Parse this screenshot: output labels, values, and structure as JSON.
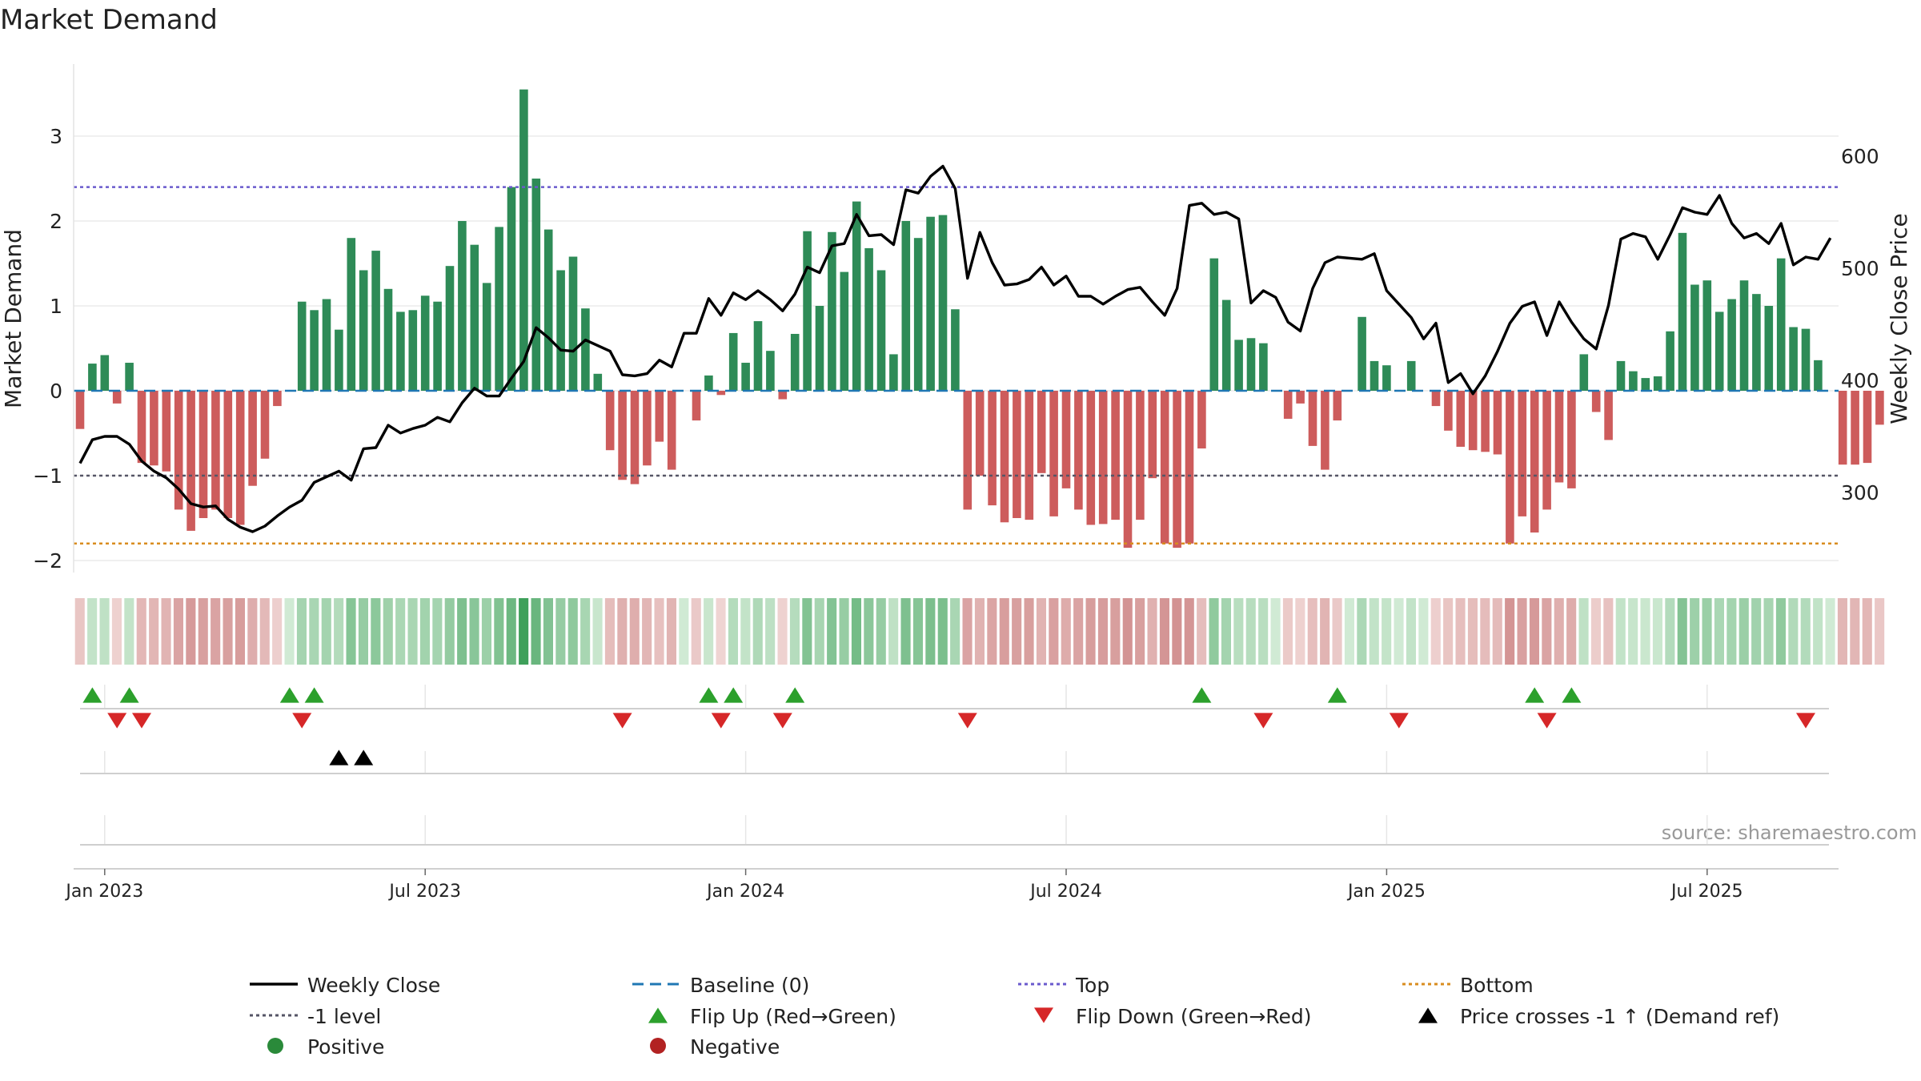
{
  "chart_data": {
    "type": "bar",
    "title": "Market Demand",
    "ylabel": "Market Demand",
    "y2label": "Weekly Close Price",
    "source": "source: sharemaestro.com",
    "ylim": [
      -2.2,
      3.75
    ],
    "y2lim": [
      236,
      700
    ],
    "yticks": [
      3,
      2,
      1,
      0,
      -1,
      -2
    ],
    "yticklabels": [
      "3",
      "2",
      "1",
      "0",
      "−1",
      "−2"
    ],
    "y2ticks": [
      600,
      500,
      400,
      300
    ],
    "y2ticklabels": [
      "600",
      "500",
      "400",
      "300"
    ],
    "xticks": [
      {
        "label": "Jan 2023",
        "week": 2
      },
      {
        "label": "Jul 2023",
        "week": 28
      },
      {
        "label": "Jan 2024",
        "week": 54
      },
      {
        "label": "Jul 2024",
        "week": 80
      },
      {
        "label": "Jan 2025",
        "week": 106
      },
      {
        "label": "Jul 2025",
        "week": 132
      }
    ],
    "levels": {
      "top": 2.4,
      "minus1": -1,
      "bottom": -1.8,
      "baseline": 0
    },
    "demand": [
      -0.45,
      0.32,
      0.42,
      -0.15,
      0.33,
      -0.85,
      -0.88,
      -0.95,
      -1.4,
      -1.65,
      -1.5,
      -1.4,
      -1.5,
      -1.58,
      -1.12,
      -0.8,
      -0.18,
      0,
      1.05,
      0.95,
      1.08,
      0.72,
      1.8,
      1.42,
      1.65,
      1.2,
      0.93,
      0.95,
      1.12,
      1.05,
      1.47,
      2.0,
      1.72,
      1.27,
      1.93,
      2.4,
      3.55,
      2.5,
      1.9,
      1.42,
      1.58,
      0.97,
      0.2,
      -0.7,
      -1.05,
      -1.1,
      -0.88,
      -0.6,
      -0.93,
      0,
      -0.35,
      0.18,
      -0.05,
      0.68,
      0.33,
      0.82,
      0.47,
      -0.1,
      0.67,
      1.88,
      1.0,
      1.87,
      1.4,
      2.23,
      1.68,
      1.42,
      0.43,
      2.0,
      1.8,
      2.05,
      2.07,
      0.96,
      -1.4,
      -1.0,
      -1.35,
      -1.55,
      -1.5,
      -1.52,
      -0.97,
      -1.48,
      -1.15,
      -1.4,
      -1.58,
      -1.57,
      -1.52,
      -1.85,
      -1.52,
      -1.03,
      -1.8,
      -1.85,
      -1.8,
      -0.68,
      1.56,
      1.07,
      0.6,
      0.62,
      0.56,
      0,
      -0.33,
      -0.15,
      -0.65,
      -0.93,
      -0.35,
      0,
      0.87,
      0.35,
      0.3,
      0,
      0.35,
      0,
      -0.18,
      -0.47,
      -0.66,
      -0.7,
      -0.72,
      -0.75,
      -1.8,
      -1.48,
      -1.67,
      -1.4,
      -1.08,
      -1.15,
      0.43,
      -0.25,
      -0.58,
      0.35,
      0.23,
      0.15,
      0.17,
      0.7,
      1.86,
      1.25,
      1.3,
      0.93,
      1.08,
      1.3,
      1.14,
      1.0,
      1.56,
      0.75,
      0.73,
      0.36,
      0,
      -0.87,
      -0.87,
      -0.85,
      -0.4
    ],
    "close": [
      326,
      347,
      350,
      350,
      343,
      328,
      319,
      313,
      303,
      290,
      287,
      288,
      276,
      269,
      265,
      270,
      279,
      287,
      293,
      309,
      314,
      319,
      311,
      339,
      340,
      360,
      353,
      357,
      360,
      367,
      363,
      380,
      393,
      386,
      386,
      402,
      417,
      447,
      438,
      427,
      426,
      436,
      431,
      426,
      405,
      404,
      406,
      418,
      412,
      442,
      442,
      473,
      458,
      478,
      472,
      480,
      472,
      462,
      477,
      501,
      496,
      520,
      522,
      548,
      529,
      530,
      521,
      570,
      567,
      582,
      591,
      571,
      491,
      532,
      505,
      485,
      486,
      490,
      501,
      485,
      493,
      475,
      475,
      468,
      475,
      481,
      483,
      470,
      458,
      482,
      556,
      558,
      548,
      550,
      544,
      469,
      480,
      474,
      452,
      444,
      482,
      505,
      510,
      509,
      508,
      513,
      480,
      468,
      456,
      437,
      451,
      398,
      406,
      388,
      404,
      426,
      451,
      466,
      470,
      440,
      470,
      452,
      437,
      428,
      467,
      526,
      531,
      528,
      508,
      530,
      554,
      550,
      548,
      565,
      540,
      527,
      531,
      522,
      540,
      503,
      510,
      508,
      527
    ]
  },
  "flags": {
    "flip_up_label": "Flip Up (Red→Green)",
    "flip_down_label": "Flip Down (Green→Red)",
    "crosses_label": "Price crosses -1 ↑ (Demand ref)",
    "flip_up_weeks": [
      1,
      4,
      17,
      19,
      51,
      53,
      58,
      91,
      102,
      118,
      121
    ],
    "flip_down_weeks": [
      3,
      5,
      18,
      44,
      52,
      57,
      72,
      96,
      107,
      119,
      140
    ],
    "cross_weeks": [
      21,
      23
    ]
  },
  "legend": [
    {
      "label": "Weekly Close",
      "kind": "line-solid",
      "color": "#000000"
    },
    {
      "label": "Baseline (0)",
      "kind": "line-dash",
      "color": "#1f77b4"
    },
    {
      "label": "Top",
      "kind": "line-dot",
      "color": "#6a5acd"
    },
    {
      "label": "Bottom",
      "kind": "line-dot",
      "color": "#d98c1f"
    },
    {
      "label": "-1 level",
      "kind": "line-dot",
      "color": "#555566"
    },
    {
      "label": "Flip Up (Red→Green)",
      "kind": "tri-up",
      "color": "#2ca02c"
    },
    {
      "label": "Flip Down (Green→Red)",
      "kind": "tri-down",
      "color": "#d62728"
    },
    {
      "label": "Price crosses -1 ↑ (Demand ref)",
      "kind": "tri-up",
      "color": "#000000"
    },
    {
      "label": "Positive",
      "kind": "dot",
      "color": "#2a8a3a"
    },
    {
      "label": "Negative",
      "kind": "dot",
      "color": "#b22222"
    }
  ],
  "colors": {
    "positive": "#2e8b57",
    "negative": "#cd5c5c",
    "close": "#000000",
    "top": "#6a5acd",
    "bottom": "#d98c1f",
    "minus1": "#555566",
    "baseline": "#1f77b4"
  }
}
